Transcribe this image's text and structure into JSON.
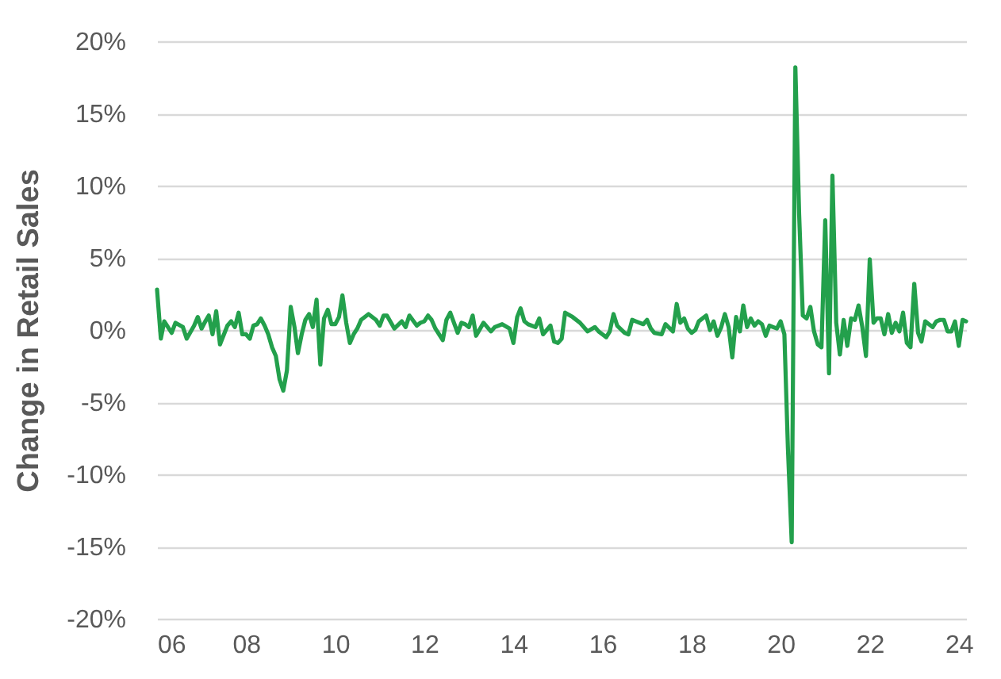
{
  "chart_data": {
    "type": "line",
    "ylabel": "Change in Retail Sales",
    "x": [
      "2006-01",
      "2006-02",
      "2006-03",
      "2006-05",
      "2006-06",
      "2006-08",
      "2006-09",
      "2006-11",
      "2006-12",
      "2007-01",
      "2007-02",
      "2007-03",
      "2007-04",
      "2007-05",
      "2007-06",
      "2007-08",
      "2007-09",
      "2007-10",
      "2007-11",
      "2007-12",
      "2008-01",
      "2008-02",
      "2008-03",
      "2008-04",
      "2008-05",
      "2008-06",
      "2008-07",
      "2008-08",
      "2008-09",
      "2008-10",
      "2008-11",
      "2008-12",
      "2009-01",
      "2009-02",
      "2009-03",
      "2009-04",
      "2009-05",
      "2009-06",
      "2009-07",
      "2009-08",
      "2009-09",
      "2009-10",
      "2009-11",
      "2009-12",
      "2010-01",
      "2010-02",
      "2010-03",
      "2010-04",
      "2010-05",
      "2010-06",
      "2010-07",
      "2010-08",
      "2010-10",
      "2010-12",
      "2011-01",
      "2011-02",
      "2011-03",
      "2011-05",
      "2011-07",
      "2011-08",
      "2011-09",
      "2011-11",
      "2011-12",
      "2012-01",
      "2012-02",
      "2012-03",
      "2012-04",
      "2012-06",
      "2012-07",
      "2012-08",
      "2012-10",
      "2012-11",
      "2012-12",
      "2013-01",
      "2013-02",
      "2013-03",
      "2013-05",
      "2013-07",
      "2013-08",
      "2013-10",
      "2013-12",
      "2014-01",
      "2014-02",
      "2014-03",
      "2014-04",
      "2014-05",
      "2014-07",
      "2014-08",
      "2014-09",
      "2014-11",
      "2014-12",
      "2015-01",
      "2015-02",
      "2015-03",
      "2015-05",
      "2015-07",
      "2015-09",
      "2015-11",
      "2015-12",
      "2016-01",
      "2016-02",
      "2016-03",
      "2016-04",
      "2016-05",
      "2016-07",
      "2016-08",
      "2016-09",
      "2016-10",
      "2016-12",
      "2017-01",
      "2017-02",
      "2017-03",
      "2017-05",
      "2017-06",
      "2017-08",
      "2017-09",
      "2017-10",
      "2017-11",
      "2017-12",
      "2018-01",
      "2018-02",
      "2018-03",
      "2018-05",
      "2018-06",
      "2018-07",
      "2018-08",
      "2018-09",
      "2018-10",
      "2018-11",
      "2018-12",
      "2019-01",
      "2019-02",
      "2019-03",
      "2019-04",
      "2019-05",
      "2019-06",
      "2019-07",
      "2019-08",
      "2019-09",
      "2019-10",
      "2019-11",
      "2019-12",
      "2020-01",
      "2020-02",
      "2020-03",
      "2020-04",
      "2020-05",
      "2020-06",
      "2020-07",
      "2020-08",
      "2020-09",
      "2020-10",
      "2020-11",
      "2020-12",
      "2021-01",
      "2021-02",
      "2021-03",
      "2021-04",
      "2021-05",
      "2021-06",
      "2021-07",
      "2021-08",
      "2021-09",
      "2021-10",
      "2021-11",
      "2021-12",
      "2022-01",
      "2022-02",
      "2022-03",
      "2022-04",
      "2022-05",
      "2022-06",
      "2022-07",
      "2022-08",
      "2022-09",
      "2022-10",
      "2022-11",
      "2022-12",
      "2023-01",
      "2023-02",
      "2023-03",
      "2023-04",
      "2023-05",
      "2023-06",
      "2023-07",
      "2023-08",
      "2023-09",
      "2023-10",
      "2023-11",
      "2023-12",
      "2024-01",
      "2024-02",
      "2024-03"
    ],
    "series": [
      {
        "color": "#23a04c",
        "values": [
          2.8,
          -0.6,
          0.6,
          -0.2,
          0.5,
          0.2,
          -0.6,
          0.3,
          0.9,
          0.1,
          0.6,
          1.0,
          -0.3,
          1.3,
          -1.0,
          0.3,
          0.6,
          0.2,
          1.2,
          -0.3,
          -0.3,
          -0.6,
          0.3,
          0.4,
          0.8,
          0.3,
          -0.3,
          -1.2,
          -1.8,
          -3.4,
          -4.2,
          -2.8,
          1.6,
          0.2,
          -1.6,
          -0.3,
          0.7,
          1.1,
          0.2,
          2.1,
          -2.4,
          0.8,
          1.4,
          0.4,
          0.4,
          0.9,
          2.4,
          0.5,
          -0.9,
          -0.3,
          0.1,
          0.7,
          1.1,
          0.7,
          0.3,
          1.0,
          1.0,
          0.1,
          0.6,
          0.2,
          1.0,
          0.3,
          0.5,
          0.6,
          1.0,
          0.7,
          0.1,
          -0.7,
          0.7,
          1.2,
          -0.2,
          0.5,
          0.4,
          0.2,
          1.0,
          -0.4,
          0.5,
          -0.1,
          0.2,
          0.4,
          0.1,
          -0.9,
          0.9,
          1.5,
          0.6,
          0.4,
          0.2,
          0.8,
          -0.3,
          0.3,
          -0.8,
          -0.9,
          -0.6,
          1.2,
          0.9,
          0.5,
          -0.1,
          0.2,
          -0.1,
          -0.3,
          -0.5,
          -0.1,
          1.1,
          0.3,
          -0.2,
          -0.3,
          0.7,
          0.6,
          0.4,
          0.7,
          0.1,
          -0.2,
          -0.3,
          0.4,
          -0.1,
          1.8,
          0.5,
          0.8,
          0.1,
          -0.2,
          0.0,
          0.6,
          1.0,
          0.0,
          0.6,
          -0.4,
          0.2,
          1.1,
          0.2,
          -1.9,
          0.9,
          -0.1,
          1.7,
          0.2,
          0.8,
          0.3,
          0.6,
          0.4,
          -0.4,
          0.3,
          0.2,
          0.1,
          0.6,
          -0.3,
          -8.2,
          -14.7,
          18.2,
          8.0,
          1.0,
          0.8,
          1.6,
          -0.1,
          -1.0,
          -1.2,
          7.6,
          -3.0,
          10.7,
          0.5,
          -1.7,
          0.7,
          -1.1,
          0.8,
          0.7,
          1.7,
          0.2,
          -1.8,
          4.9,
          0.5,
          0.8,
          0.8,
          -0.3,
          1.1,
          -0.2,
          0.5,
          -0.1,
          1.2,
          -0.9,
          -1.2,
          3.2,
          -0.2,
          -0.8,
          0.6,
          0.4,
          0.2,
          0.6,
          0.7,
          0.7,
          -0.1,
          -0.1,
          0.6,
          -1.1,
          0.7,
          0.6
        ]
      }
    ],
    "xlim": [
      "2006-01",
      "2024-03"
    ],
    "xticks": [
      {
        "value": "2006-01",
        "label": "06"
      },
      {
        "value": "2008-01",
        "label": "08"
      },
      {
        "value": "2010-01",
        "label": "10"
      },
      {
        "value": "2012-01",
        "label": "12"
      },
      {
        "value": "2014-01",
        "label": "14"
      },
      {
        "value": "2016-01",
        "label": "16"
      },
      {
        "value": "2018-01",
        "label": "18"
      },
      {
        "value": "2020-01",
        "label": "20"
      },
      {
        "value": "2022-01",
        "label": "22"
      },
      {
        "value": "2024-01",
        "label": "24"
      }
    ],
    "ylim": [
      -20,
      20
    ],
    "yticks": [
      {
        "value": -20,
        "label": "-20%"
      },
      {
        "value": -15,
        "label": "-15%"
      },
      {
        "value": -10,
        "label": "-10%"
      },
      {
        "value": -5,
        "label": "-5%"
      },
      {
        "value": 0,
        "label": "0%"
      },
      {
        "value": 5,
        "label": "5%"
      },
      {
        "value": 10,
        "label": "10%"
      },
      {
        "value": 15,
        "label": "15%"
      },
      {
        "value": 20,
        "label": "20%"
      }
    ],
    "grid": "y",
    "legend": false,
    "line_style": "solid"
  }
}
